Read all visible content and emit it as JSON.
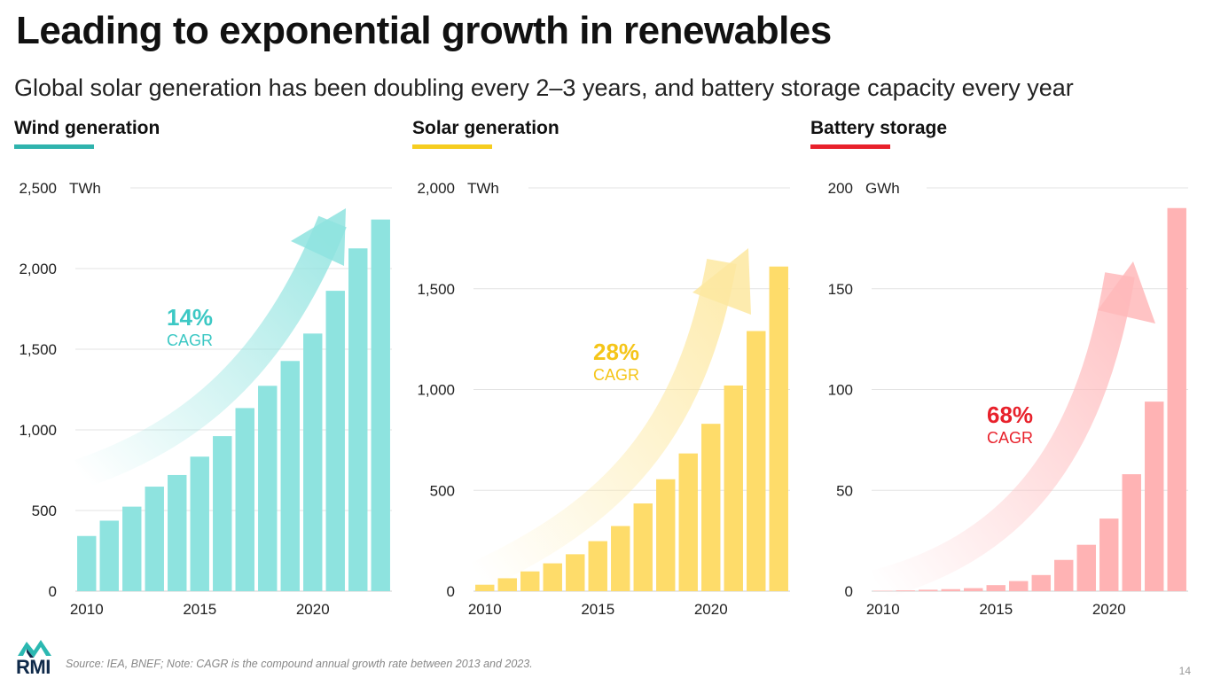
{
  "header": {
    "title": "Leading to exponential growth in renewables",
    "subtitle": "Global solar generation has been doubling every 2–3 years, and battery storage capacity every year"
  },
  "chart_data": [
    {
      "type": "bar",
      "title": "Wind generation",
      "unit": "TWh",
      "accent_color": "#2fb3ad",
      "bar_color": "#8ee3df",
      "arrow_color": "#8ee3df",
      "cagr_color": "#3cc8c4",
      "cagr_pct": "14%",
      "cagr_label": "CAGR",
      "ylim": [
        0,
        2500
      ],
      "yticks": [
        0,
        500,
        1000,
        1500,
        2000,
        2500
      ],
      "ytick_labels": [
        "0",
        "500",
        "1,000",
        "1,500",
        "2,000",
        "2,500"
      ],
      "xtick_labels": [
        "2010",
        "2015",
        "2020"
      ],
      "x": [
        2010,
        2011,
        2012,
        2013,
        2014,
        2015,
        2016,
        2017,
        2018,
        2019,
        2020,
        2021,
        2022,
        2023
      ],
      "values": [
        342,
        437,
        524,
        648,
        720,
        834,
        961,
        1135,
        1273,
        1427,
        1597,
        1862,
        2125,
        2304
      ]
    },
    {
      "type": "bar",
      "title": "Solar generation",
      "unit": "TWh",
      "accent_color": "#f6cd1f",
      "bar_color": "#fedc6a",
      "arrow_color": "#fde8a0",
      "cagr_color": "#f5c518",
      "cagr_pct": "28%",
      "cagr_label": "CAGR",
      "ylim": [
        0,
        2000
      ],
      "yticks": [
        0,
        500,
        1000,
        1500,
        2000
      ],
      "ytick_labels": [
        "0",
        "500",
        "1,000",
        "1,500",
        "2,000"
      ],
      "xtick_labels": [
        "2010",
        "2015",
        "2020"
      ],
      "x": [
        2010,
        2011,
        2012,
        2013,
        2014,
        2015,
        2016,
        2017,
        2018,
        2019,
        2020,
        2021,
        2022,
        2023
      ],
      "values": [
        32,
        64,
        98,
        138,
        183,
        248,
        323,
        435,
        555,
        683,
        830,
        1020,
        1290,
        1610
      ]
    },
    {
      "type": "bar",
      "title": "Battery storage",
      "unit": "GWh",
      "accent_color": "#e8212b",
      "bar_color": "#ffb3b4",
      "arrow_color": "#ffb8ba",
      "cagr_color": "#e8212b",
      "cagr_pct": "68%",
      "cagr_label": "CAGR",
      "ylim": [
        0,
        200
      ],
      "yticks": [
        0,
        50,
        100,
        150,
        200
      ],
      "ytick_labels": [
        "0",
        "50",
        "100",
        "150",
        "200"
      ],
      "xtick_labels": [
        "2010",
        "2015",
        "2020"
      ],
      "x": [
        2010,
        2011,
        2012,
        2013,
        2014,
        2015,
        2016,
        2017,
        2018,
        2019,
        2020,
        2021,
        2022,
        2023
      ],
      "values": [
        0.2,
        0.4,
        0.7,
        1,
        1.5,
        3,
        5,
        8,
        15.5,
        23,
        36,
        58,
        94,
        190
      ]
    }
  ],
  "footer": {
    "logo_text": "RMI",
    "source": "Source: IEA, BNEF; Note: CAGR is the compound annual growth rate between 2013 and 2023.",
    "page_number": "14"
  }
}
